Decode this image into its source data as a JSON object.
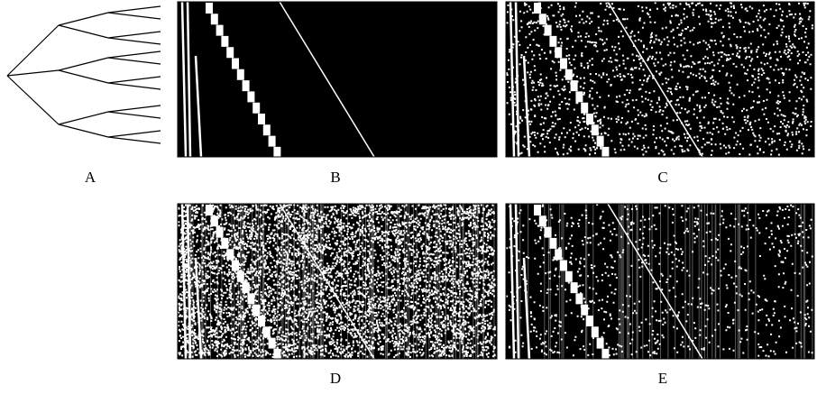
{
  "figure": {
    "panels": [
      {
        "label": "A"
      },
      {
        "label": "B"
      },
      {
        "label": "C"
      },
      {
        "label": "D"
      },
      {
        "label": "E"
      }
    ]
  }
}
